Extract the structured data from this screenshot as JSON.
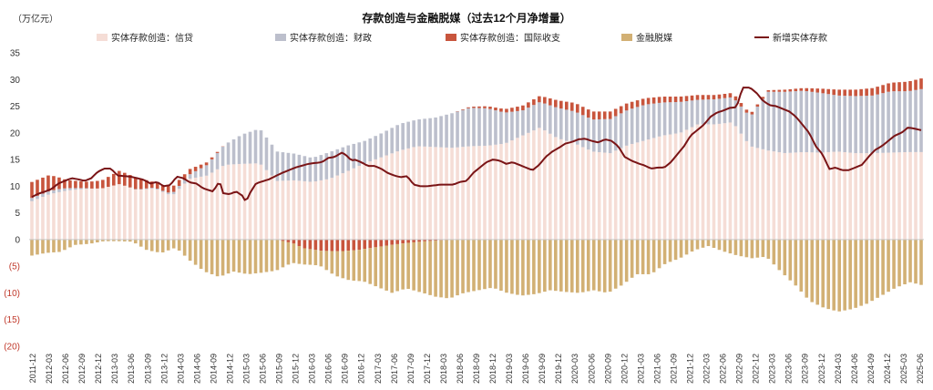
{
  "chart_data": {
    "type": "bar",
    "title": "存款创造与金融脱媒（过去12个月净增量）",
    "unit_label": "（万亿元）",
    "ylim": [
      -20,
      35
    ],
    "y_ticks": [
      35,
      30,
      25,
      20,
      15,
      10,
      5,
      0,
      -5,
      -10,
      -15,
      -20
    ],
    "y_tick_labels": [
      "35",
      "30",
      "25",
      "20",
      "15",
      "10",
      "5",
      "0",
      "(5)",
      "(10)",
      "(15)",
      "(20)"
    ],
    "x_tick_labels": [
      "2011-12",
      "2012-03",
      "2012-06",
      "2012-09",
      "2012-12",
      "2013-03",
      "2013-06",
      "2013-09",
      "2013-12",
      "2014-03",
      "2014-06",
      "2014-09",
      "2014-12",
      "2015-03",
      "2015-06",
      "2015-09",
      "2015-12",
      "2016-03",
      "2016-06",
      "2016-09",
      "2016-12",
      "2017-03",
      "2017-06",
      "2017-09",
      "2017-12",
      "2018-03",
      "2018-06",
      "2018-09",
      "2018-12",
      "2019-03",
      "2019-06",
      "2019-09",
      "2019-12",
      "2020-03",
      "2020-06",
      "2020-09",
      "2020-12",
      "2021-03",
      "2021-06",
      "2021-09",
      "2021-12",
      "2022-03",
      "2022-06",
      "2022-09",
      "2022-12",
      "2023-03",
      "2023-06",
      "2023-09",
      "2023-12",
      "2024-03",
      "2024-06",
      "2024-09",
      "2024-12",
      "2025-03",
      "2025-06"
    ],
    "legend": [
      "实体存款创造：信贷",
      "实体存款创造：财政",
      "实体存款创造：国际收支",
      "金融脱媒",
      "新增实体存款"
    ],
    "colors": {
      "credit": "#f5ddd6",
      "fiscal": "#bcbfcc",
      "bop": "#c8553d",
      "disinter": "#d2b074",
      "line": "#7a1416"
    },
    "anchors": {
      "credit": [
        [
          0,
          7.2
        ],
        [
          4,
          8.5
        ],
        [
          8,
          9.2
        ],
        [
          12,
          9.5
        ],
        [
          16,
          9.6
        ],
        [
          20,
          10.4
        ],
        [
          24,
          9.3
        ],
        [
          28,
          9.6
        ],
        [
          32,
          8.2
        ],
        [
          36,
          11.4
        ],
        [
          40,
          12.0
        ],
        [
          44,
          14.0
        ],
        [
          48,
          14.2
        ],
        [
          52,
          14.3
        ],
        [
          56,
          11.0
        ],
        [
          60,
          11.1
        ],
        [
          64,
          10.8
        ],
        [
          68,
          11.4
        ],
        [
          72,
          12.8
        ],
        [
          76,
          14.3
        ],
        [
          80,
          15.5
        ],
        [
          84,
          16.7
        ],
        [
          88,
          17.5
        ],
        [
          96,
          17.2
        ],
        [
          100,
          17.5
        ],
        [
          104,
          17.6
        ],
        [
          108,
          18.0
        ],
        [
          112,
          19.5
        ],
        [
          116,
          21.0
        ],
        [
          120,
          19.0
        ],
        [
          124,
          18.0
        ],
        [
          128,
          16.5
        ],
        [
          132,
          16.2
        ],
        [
          136,
          17.7
        ],
        [
          140,
          18.6
        ],
        [
          144,
          19.5
        ],
        [
          148,
          20.0
        ],
        [
          152,
          21.6
        ],
        [
          156,
          21.6
        ],
        [
          160,
          22.0
        ],
        [
          164,
          17.5
        ],
        [
          168,
          16.7
        ],
        [
          172,
          16.2
        ],
        [
          176,
          16.4
        ],
        [
          180,
          16.3
        ],
        [
          184,
          16.5
        ],
        [
          188,
          16.2
        ],
        [
          192,
          16.2
        ],
        [
          196,
          16.3
        ],
        [
          200,
          16.4
        ],
        [
          203,
          16.4
        ]
      ],
      "fiscal": [
        [
          0,
          0.6
        ],
        [
          6,
          0.6
        ],
        [
          14,
          0.0
        ],
        [
          20,
          0.0
        ],
        [
          30,
          0.2
        ],
        [
          36,
          0.8
        ],
        [
          40,
          2.0
        ],
        [
          44,
          3.8
        ],
        [
          48,
          5.5
        ],
        [
          52,
          6.5
        ],
        [
          56,
          5.5
        ],
        [
          60,
          5.0
        ],
        [
          64,
          4.5
        ],
        [
          68,
          5.0
        ],
        [
          72,
          4.8
        ],
        [
          76,
          4.2
        ],
        [
          80,
          4.5
        ],
        [
          84,
          5.0
        ],
        [
          88,
          5.0
        ],
        [
          92,
          5.5
        ],
        [
          96,
          6.5
        ],
        [
          100,
          7.2
        ],
        [
          104,
          7.0
        ],
        [
          108,
          5.8
        ],
        [
          112,
          4.7
        ],
        [
          116,
          4.8
        ],
        [
          120,
          5.7
        ],
        [
          124,
          6.0
        ],
        [
          128,
          6.0
        ],
        [
          132,
          6.4
        ],
        [
          136,
          6.6
        ],
        [
          140,
          6.7
        ],
        [
          144,
          6.2
        ],
        [
          148,
          5.8
        ],
        [
          152,
          4.6
        ],
        [
          156,
          4.7
        ],
        [
          160,
          4.7
        ],
        [
          164,
          5.5
        ],
        [
          168,
          11.0
        ],
        [
          172,
          11.5
        ],
        [
          176,
          11.5
        ],
        [
          180,
          11.2
        ],
        [
          184,
          10.5
        ],
        [
          188,
          10.7
        ],
        [
          192,
          10.8
        ],
        [
          196,
          11.5
        ],
        [
          200,
          11.4
        ],
        [
          203,
          11.8
        ]
      ],
      "bop": [
        [
          0,
          3.0
        ],
        [
          4,
          3.0
        ],
        [
          8,
          1.5
        ],
        [
          12,
          1.2
        ],
        [
          16,
          1.5
        ],
        [
          20,
          2.5
        ],
        [
          24,
          2.2
        ],
        [
          28,
          1.0
        ],
        [
          32,
          1.2
        ],
        [
          36,
          1.0
        ],
        [
          40,
          0.5
        ],
        [
          44,
          0.0
        ],
        [
          96,
          0.0
        ],
        [
          104,
          0.4
        ],
        [
          112,
          0.9
        ],
        [
          120,
          1.4
        ],
        [
          124,
          1.6
        ],
        [
          128,
          1.5
        ],
        [
          136,
          1.3
        ],
        [
          148,
          1.0
        ],
        [
          156,
          0.8
        ],
        [
          160,
          0.8
        ],
        [
          164,
          0.5
        ],
        [
          168,
          0.3
        ],
        [
          176,
          0.5
        ],
        [
          180,
          0.8
        ],
        [
          184,
          1.1
        ],
        [
          188,
          1.2
        ],
        [
          192,
          1.4
        ],
        [
          196,
          1.6
        ],
        [
          200,
          1.8
        ],
        [
          203,
          2.0
        ]
      ],
      "neg_bop": [
        [
          0,
          0
        ],
        [
          56,
          0
        ],
        [
          60,
          -0.8
        ],
        [
          62,
          -1.6
        ],
        [
          66,
          -2.1
        ],
        [
          70,
          -2.2
        ],
        [
          74,
          -2.0
        ],
        [
          78,
          -1.5
        ],
        [
          82,
          -1.0
        ],
        [
          86,
          -0.6
        ],
        [
          90,
          -0.3
        ],
        [
          94,
          -0.1
        ],
        [
          97,
          0
        ],
        [
          203,
          0
        ]
      ],
      "disinter": [
        [
          0,
          -3.0
        ],
        [
          4,
          -2.5
        ],
        [
          8,
          -2.3
        ],
        [
          12,
          -1.0
        ],
        [
          16,
          -0.8
        ],
        [
          20,
          -0.3
        ],
        [
          24,
          -0.3
        ],
        [
          28,
          -0.4
        ],
        [
          32,
          -2.0
        ],
        [
          36,
          -2.5
        ],
        [
          40,
          -1.5
        ],
        [
          44,
          -4.0
        ],
        [
          48,
          -6.0
        ],
        [
          52,
          -7.0
        ],
        [
          56,
          -6.0
        ],
        [
          60,
          -6.5
        ],
        [
          64,
          -6.2
        ],
        [
          68,
          -5.8
        ],
        [
          72,
          -3.8
        ],
        [
          76,
          -3.0
        ],
        [
          80,
          -2.8
        ],
        [
          84,
          -4.5
        ],
        [
          88,
          -5.5
        ],
        [
          92,
          -6.0
        ],
        [
          96,
          -7.5
        ],
        [
          100,
          -9.0
        ],
        [
          104,
          -8.5
        ],
        [
          108,
          -9.5
        ],
        [
          112,
          -10.5
        ],
        [
          116,
          -11.0
        ],
        [
          120,
          -10.0
        ],
        [
          124,
          -9.5
        ],
        [
          128,
          -9.0
        ],
        [
          132,
          -10.0
        ],
        [
          136,
          -10.5
        ],
        [
          140,
          -10.2
        ],
        [
          144,
          -9.5
        ],
        [
          148,
          -9.8
        ],
        [
          152,
          -10.0
        ],
        [
          156,
          -9.5
        ],
        [
          160,
          -10.0
        ],
        [
          164,
          -8.5
        ],
        [
          168,
          -6.5
        ],
        [
          172,
          -6.5
        ],
        [
          176,
          -4.5
        ],
        [
          180,
          -3.5
        ],
        [
          184,
          -2.0
        ],
        [
          188,
          -1.2
        ],
        [
          192,
          -2.2
        ],
        [
          196,
          -3.0
        ],
        [
          200,
          -3.5
        ],
        [
          204,
          -3.2
        ],
        [
          208,
          -6.0
        ],
        [
          212,
          -8.5
        ],
        [
          216,
          -11.5
        ],
        [
          220,
          -12.8
        ],
        [
          224,
          -13.5
        ],
        [
          228,
          -13.0
        ],
        [
          232,
          -12.0
        ],
        [
          236,
          -10.5
        ],
        [
          240,
          -9.0
        ],
        [
          244,
          -8.0
        ],
        [
          247,
          -8.5
        ]
      ],
      "line": [
        [
          0,
          8.0
        ],
        [
          2,
          8.6
        ],
        [
          4,
          9.0
        ],
        [
          6,
          9.5
        ],
        [
          8,
          10.5
        ],
        [
          10,
          11.0
        ],
        [
          12,
          11.5
        ],
        [
          14,
          11.3
        ],
        [
          16,
          11.0
        ],
        [
          18,
          11.5
        ],
        [
          20,
          12.7
        ],
        [
          22,
          13.3
        ],
        [
          24,
          13.3
        ],
        [
          26,
          12.0
        ],
        [
          28,
          11.9
        ],
        [
          30,
          11.8
        ],
        [
          32,
          11.5
        ],
        [
          34,
          11.2
        ],
        [
          36,
          10.5
        ],
        [
          38,
          10.8
        ],
        [
          40,
          10.0
        ],
        [
          42,
          10.2
        ],
        [
          44,
          11.8
        ],
        [
          46,
          11.5
        ],
        [
          48,
          10.7
        ],
        [
          50,
          10.5
        ],
        [
          52,
          9.6
        ],
        [
          54,
          9.2
        ],
        [
          55,
          9.0
        ],
        [
          56,
          10.0
        ],
        [
          57,
          11.0
        ],
        [
          58,
          8.7
        ],
        [
          60,
          8.5
        ],
        [
          62,
          9.0
        ],
        [
          64,
          8.2
        ],
        [
          65,
          7.0
        ],
        [
          66,
          8.5
        ],
        [
          68,
          10.5
        ],
        [
          72,
          11.3
        ],
        [
          76,
          12.5
        ],
        [
          80,
          13.5
        ],
        [
          84,
          14.2
        ],
        [
          88,
          14.5
        ],
        [
          90,
          15.3
        ],
        [
          92,
          15.5
        ],
        [
          94,
          16.3
        ],
        [
          95,
          16.0
        ],
        [
          96,
          15.5
        ],
        [
          97,
          14.8
        ],
        [
          98,
          15.0
        ],
        [
          100,
          14.5
        ],
        [
          102,
          13.8
        ],
        [
          104,
          13.8
        ],
        [
          106,
          13.3
        ],
        [
          108,
          12.5
        ],
        [
          110,
          12.0
        ],
        [
          112,
          11.7
        ],
        [
          114,
          11.9
        ],
        [
          115,
          11.0
        ],
        [
          116,
          10.3
        ],
        [
          118,
          10.0
        ],
        [
          120,
          10.0
        ],
        [
          124,
          10.3
        ],
        [
          128,
          10.3
        ],
        [
          130,
          10.8
        ],
        [
          132,
          11.0
        ],
        [
          134,
          12.5
        ],
        [
          136,
          13.5
        ],
        [
          138,
          14.5
        ],
        [
          140,
          15.0
        ],
        [
          142,
          14.8
        ],
        [
          144,
          14.2
        ],
        [
          146,
          14.5
        ],
        [
          148,
          14.0
        ],
        [
          150,
          13.5
        ],
        [
          152,
          13.0
        ],
        [
          154,
          14.0
        ],
        [
          156,
          15.5
        ],
        [
          158,
          16.5
        ],
        [
          160,
          17.2
        ],
        [
          162,
          18.0
        ],
        [
          164,
          18.3
        ],
        [
          166,
          18.8
        ],
        [
          168,
          18.9
        ],
        [
          170,
          18.5
        ],
        [
          172,
          18.2
        ],
        [
          174,
          18.8
        ],
        [
          176,
          18.5
        ],
        [
          178,
          17.5
        ],
        [
          180,
          15.5
        ],
        [
          182,
          14.8
        ],
        [
          184,
          14.3
        ],
        [
          186,
          13.9
        ],
        [
          188,
          13.3
        ],
        [
          190,
          13.5
        ],
        [
          192,
          13.5
        ],
        [
          194,
          14.5
        ],
        [
          196,
          16.0
        ],
        [
          198,
          17.5
        ],
        [
          200,
          19.5
        ],
        [
          202,
          20.5
        ],
        [
          204,
          21.5
        ],
        [
          206,
          23.0
        ],
        [
          208,
          23.8
        ],
        [
          210,
          24.2
        ],
        [
          212,
          24.7
        ],
        [
          214,
          24.8
        ],
        [
          215,
          27.0
        ],
        [
          216,
          28.5
        ],
        [
          218,
          28.5
        ],
        [
          220,
          27.5
        ],
        [
          222,
          26.0
        ],
        [
          224,
          25.2
        ],
        [
          226,
          25.0
        ],
        [
          228,
          24.5
        ],
        [
          230,
          24.0
        ],
        [
          232,
          23.0
        ],
        [
          234,
          21.5
        ],
        [
          236,
          20.0
        ],
        [
          238,
          17.5
        ],
        [
          240,
          16.0
        ],
        [
          241,
          14.8
        ],
        [
          242,
          13.2
        ],
        [
          244,
          13.5
        ],
        [
          246,
          13.0
        ],
        [
          248,
          13.0
        ],
        [
          250,
          13.5
        ],
        [
          252,
          14.0
        ],
        [
          254,
          15.5
        ],
        [
          256,
          16.8
        ],
        [
          258,
          17.5
        ],
        [
          260,
          18.5
        ],
        [
          262,
          19.5
        ],
        [
          264,
          20.0
        ],
        [
          266,
          21.0
        ],
        [
          268,
          20.8
        ],
        [
          270,
          20.5
        ]
      ]
    }
  }
}
